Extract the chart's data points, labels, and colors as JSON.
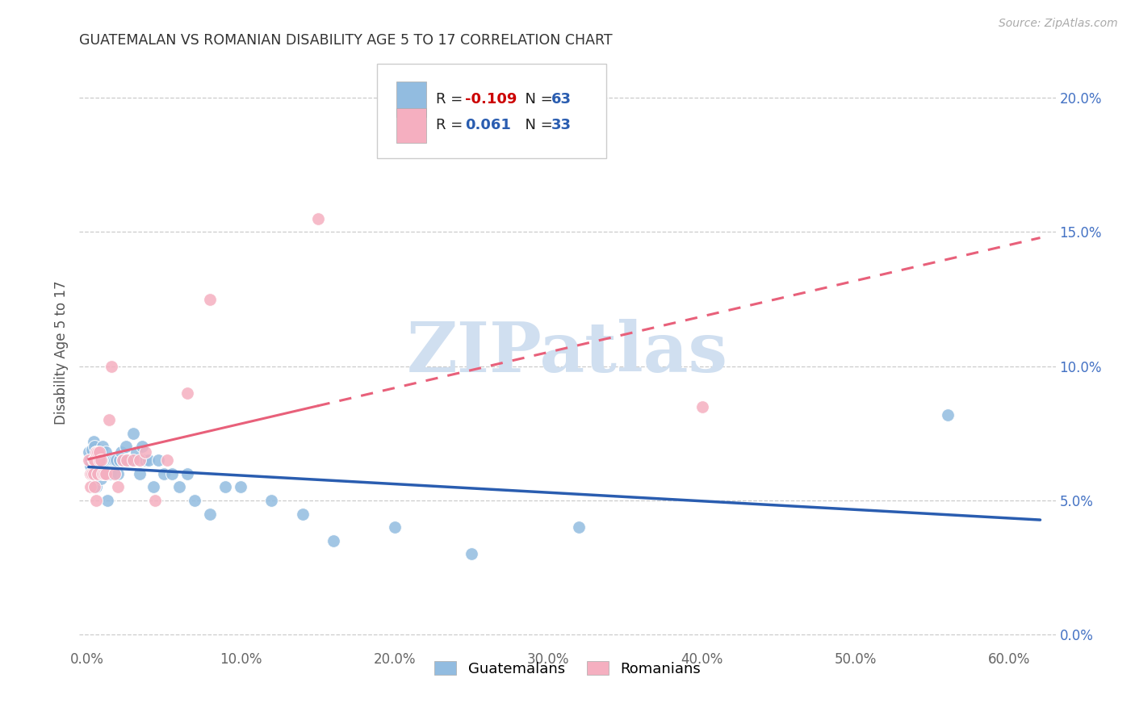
{
  "title": "GUATEMALAN VS ROMANIAN DISABILITY AGE 5 TO 17 CORRELATION CHART",
  "source": "Source: ZipAtlas.com",
  "ylabel": "Disability Age 5 to 17",
  "xlim": [
    -0.005,
    0.63
  ],
  "ylim": [
    -0.005,
    0.215
  ],
  "xlabel_vals": [
    0.0,
    0.1,
    0.2,
    0.3,
    0.4,
    0.5,
    0.6
  ],
  "xlabel_ticks": [
    "0.0%",
    "10.0%",
    "20.0%",
    "30.0%",
    "40.0%",
    "50.0%",
    "60.0%"
  ],
  "ylabel_vals": [
    0.0,
    0.05,
    0.1,
    0.15,
    0.2
  ],
  "ylabel_ticks_right": [
    "0.0%",
    "5.0%",
    "10.0%",
    "15.0%",
    "20.0%"
  ],
  "blue_color": "#92bce0",
  "pink_color": "#f5afc0",
  "blue_line_color": "#2a5db0",
  "pink_line_color": "#e8607a",
  "watermark": "ZIPatlas",
  "watermark_color": "#d0dff0",
  "grid_color": "#cccccc",
  "blue_R": "-0.109",
  "blue_N": "63",
  "pink_R": "0.061",
  "pink_N": "33",
  "guatemalan_x": [
    0.001,
    0.002,
    0.002,
    0.003,
    0.003,
    0.004,
    0.004,
    0.005,
    0.005,
    0.005,
    0.006,
    0.006,
    0.006,
    0.007,
    0.007,
    0.008,
    0.008,
    0.009,
    0.009,
    0.01,
    0.01,
    0.011,
    0.011,
    0.012,
    0.012,
    0.013,
    0.013,
    0.014,
    0.015,
    0.016,
    0.017,
    0.018,
    0.019,
    0.02,
    0.021,
    0.022,
    0.023,
    0.025,
    0.026,
    0.028,
    0.03,
    0.032,
    0.034,
    0.036,
    0.038,
    0.04,
    0.043,
    0.046,
    0.05,
    0.055,
    0.06,
    0.065,
    0.07,
    0.08,
    0.09,
    0.1,
    0.12,
    0.14,
    0.16,
    0.2,
    0.25,
    0.32,
    0.56
  ],
  "guatemalan_y": [
    0.068,
    0.065,
    0.063,
    0.069,
    0.06,
    0.072,
    0.06,
    0.065,
    0.058,
    0.07,
    0.062,
    0.068,
    0.055,
    0.065,
    0.06,
    0.068,
    0.062,
    0.065,
    0.058,
    0.07,
    0.063,
    0.065,
    0.06,
    0.068,
    0.062,
    0.05,
    0.06,
    0.065,
    0.06,
    0.065,
    0.065,
    0.065,
    0.065,
    0.06,
    0.065,
    0.068,
    0.065,
    0.07,
    0.065,
    0.065,
    0.075,
    0.068,
    0.06,
    0.07,
    0.065,
    0.065,
    0.055,
    0.065,
    0.06,
    0.06,
    0.055,
    0.06,
    0.05,
    0.045,
    0.055,
    0.055,
    0.05,
    0.045,
    0.035,
    0.04,
    0.03,
    0.04,
    0.082
  ],
  "romanian_x": [
    0.001,
    0.002,
    0.002,
    0.003,
    0.004,
    0.004,
    0.005,
    0.005,
    0.006,
    0.006,
    0.007,
    0.007,
    0.008,
    0.008,
    0.009,
    0.01,
    0.011,
    0.012,
    0.014,
    0.016,
    0.018,
    0.02,
    0.023,
    0.026,
    0.03,
    0.034,
    0.038,
    0.044,
    0.052,
    0.065,
    0.08,
    0.15,
    0.4
  ],
  "romanian_y": [
    0.065,
    0.06,
    0.055,
    0.06,
    0.065,
    0.06,
    0.065,
    0.055,
    0.068,
    0.05,
    0.068,
    0.06,
    0.065,
    0.068,
    0.065,
    0.06,
    0.06,
    0.06,
    0.08,
    0.1,
    0.06,
    0.055,
    0.065,
    0.065,
    0.065,
    0.065,
    0.068,
    0.05,
    0.065,
    0.09,
    0.125,
    0.155,
    0.085
  ],
  "pink_trendline_solid_end": 0.15,
  "pink_trendline_dash_start": 0.15,
  "pink_trendline_dash_end": 0.62,
  "blue_trendline_start": 0.001,
  "blue_trendline_end": 0.62
}
